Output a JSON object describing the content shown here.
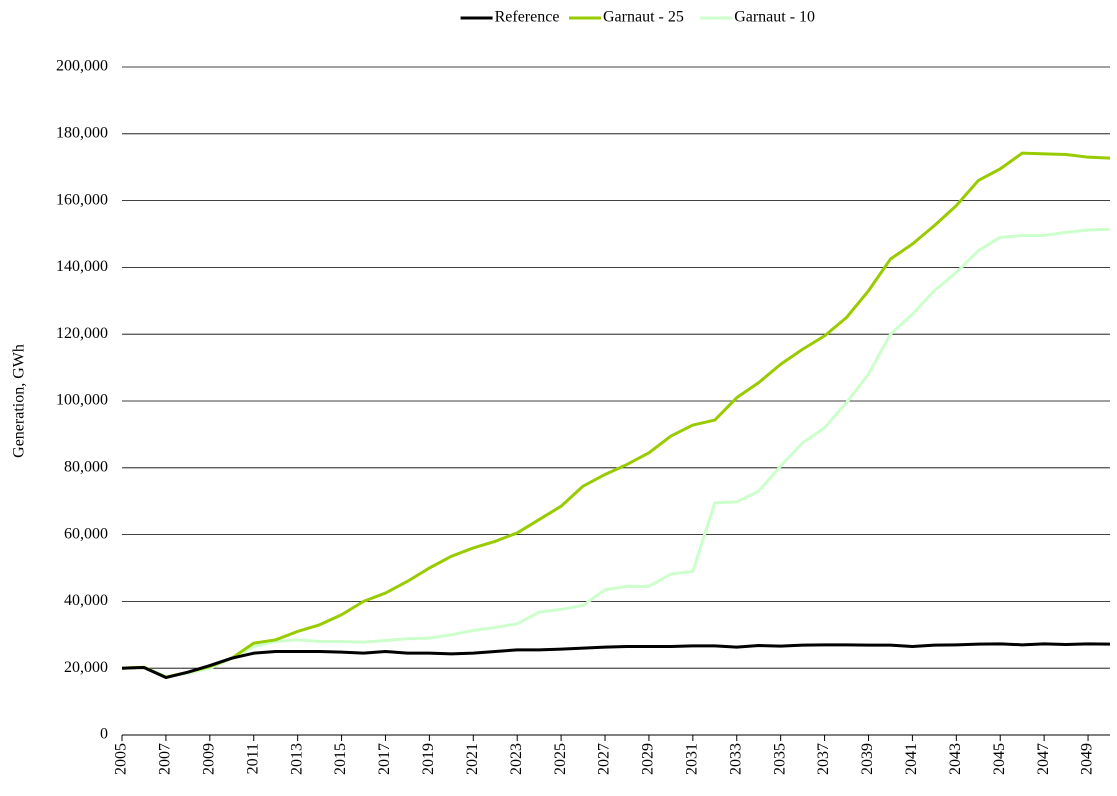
{
  "chart_data": {
    "type": "line",
    "y_label": "Generation, GWh",
    "x": [
      2005,
      2006,
      2007,
      2008,
      2009,
      2010,
      2011,
      2012,
      2013,
      2014,
      2015,
      2016,
      2017,
      2018,
      2019,
      2020,
      2021,
      2022,
      2023,
      2024,
      2025,
      2026,
      2027,
      2028,
      2029,
      2030,
      2031,
      2032,
      2033,
      2034,
      2035,
      2036,
      2037,
      2038,
      2039,
      2040,
      2041,
      2042,
      2043,
      2044,
      2045,
      2046,
      2047,
      2048,
      2049,
      2050
    ],
    "xlim": [
      2005,
      2050
    ],
    "xticks": [
      2005,
      2007,
      2009,
      2011,
      2013,
      2015,
      2017,
      2019,
      2021,
      2023,
      2025,
      2027,
      2029,
      2031,
      2033,
      2035,
      2037,
      2039,
      2041,
      2043,
      2045,
      2047,
      2049
    ],
    "ylim": [
      0,
      200000
    ],
    "yticks": [
      0,
      {
        "value": 20000,
        "label": "20,000"
      },
      {
        "value": 40000,
        "label": "40,000"
      },
      {
        "value": 60000,
        "label": "60,000"
      },
      {
        "value": 80000,
        "label": "80,000"
      },
      {
        "value": 100000,
        "label": "100,000"
      },
      {
        "value": 120000,
        "label": "120,000"
      },
      {
        "value": 140000,
        "label": "140,000"
      },
      {
        "value": 160000,
        "label": "160,000"
      },
      {
        "value": 180000,
        "label": "180,000"
      },
      {
        "value": 200000,
        "label": "200,000"
      }
    ],
    "grid": true,
    "legend": "top",
    "series": [
      {
        "name": "Reference",
        "color": "#000000",
        "values": [
          20000,
          20200,
          17200,
          18800,
          20800,
          23000,
          24500,
          25000,
          25000,
          25000,
          24800,
          24500,
          25000,
          24500,
          24500,
          24300,
          24500,
          25000,
          25500,
          25500,
          25700,
          26000,
          26300,
          26500,
          26500,
          26500,
          26700,
          26700,
          26300,
          26800,
          26600,
          26900,
          27000,
          27000,
          26900,
          26900,
          26500,
          26900,
          27000,
          27200,
          27300,
          27000,
          27300,
          27100,
          27300,
          27200
        ]
      },
      {
        "name": "Garnaut - 25",
        "color": "#99cc00",
        "values": [
          20000,
          20300,
          17300,
          18800,
          20500,
          23000,
          27500,
          28500,
          31000,
          33000,
          36000,
          40000,
          42500,
          46000,
          50000,
          53500,
          56000,
          58000,
          60500,
          64500,
          68500,
          74500,
          78000,
          81000,
          84500,
          89500,
          92800,
          94300,
          101000,
          105500,
          111000,
          115500,
          119500,
          125000,
          133000,
          142500,
          147000,
          152500,
          158500,
          166000,
          169500,
          174200,
          174000,
          173800,
          173000,
          172700
        ]
      },
      {
        "name": "Garnaut - 10",
        "color": "#ccffcc",
        "values": [
          20000,
          20300,
          17500,
          18500,
          20000,
          23000,
          26500,
          28000,
          28500,
          28000,
          28000,
          27800,
          28300,
          28800,
          29000,
          30000,
          31300,
          32200,
          33300,
          36800,
          37600,
          38800,
          43500,
          44500,
          44500,
          48200,
          49000,
          69500,
          69800,
          73000,
          80500,
          87500,
          92000,
          99500,
          108000,
          120000,
          126000,
          133000,
          138500,
          145000,
          149000,
          149500,
          149600,
          150500,
          151200,
          151400
        ]
      }
    ]
  }
}
